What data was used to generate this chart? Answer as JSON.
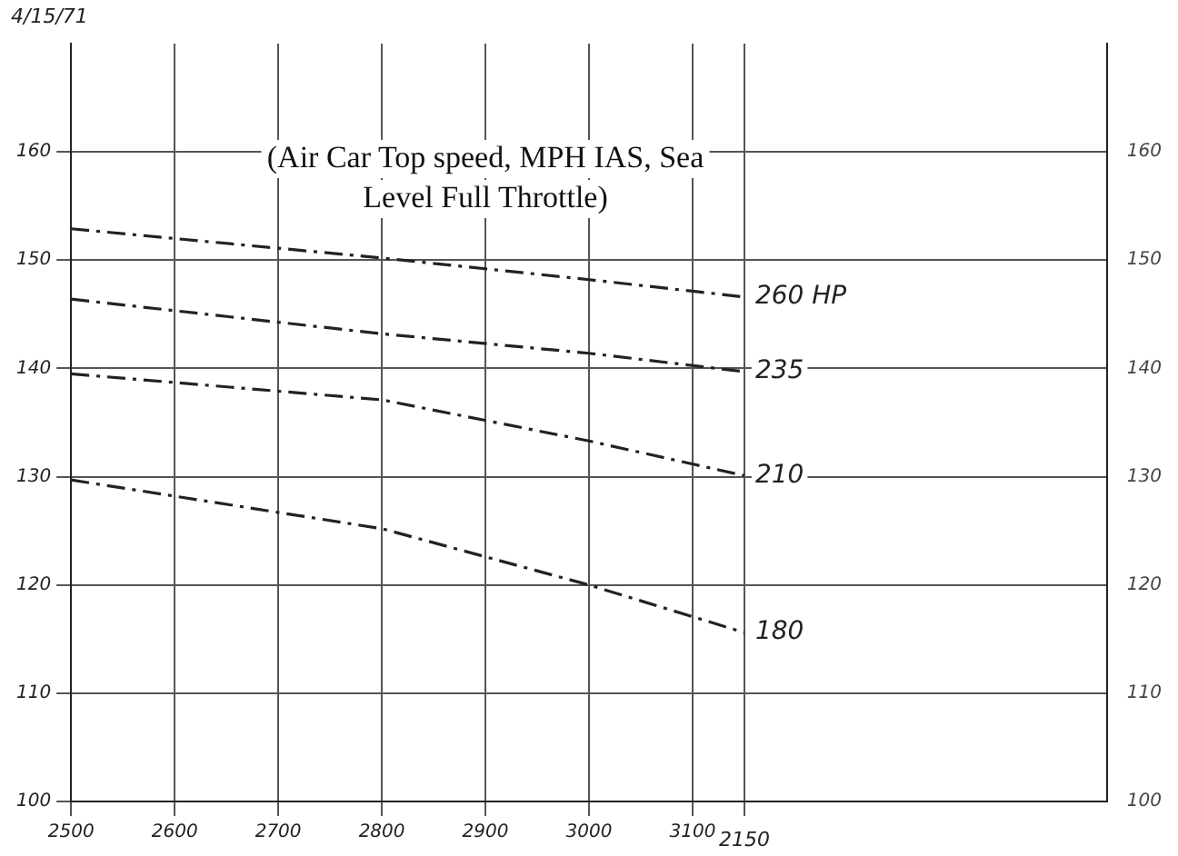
{
  "chart_data": {
    "type": "line",
    "title": "(Air Car Top speed, MPH IAS, Sea Level Full Throttle)",
    "annotations": [
      "4/15/71",
      "2150"
    ],
    "x": [
      2500,
      2800,
      3000,
      3150
    ],
    "series": [
      {
        "name": "260 HP",
        "color": "#222222",
        "values": [
          152.9,
          150.2,
          148.2,
          146.6
        ]
      },
      {
        "name": "235",
        "color": "#222222",
        "values": [
          146.4,
          143.2,
          141.4,
          139.7
        ]
      },
      {
        "name": "210",
        "color": "#222222",
        "values": [
          139.5,
          137.1,
          133.3,
          130.1
        ]
      },
      {
        "name": "180",
        "color": "#222222",
        "values": [
          129.7,
          125.2,
          120.0,
          115.6
        ]
      }
    ],
    "xlim": [
      2500,
      3500
    ],
    "xticks": [
      2500,
      2600,
      2700,
      2800,
      2900,
      3000,
      3100,
      {
        "value": 3150,
        "label": null
      }
    ],
    "ylim": [
      100,
      170
    ],
    "yticks": [
      100,
      110,
      120,
      130,
      140,
      150,
      160
    ],
    "y2lim": [
      100,
      170
    ],
    "y2ticks": [
      100,
      110,
      120,
      130,
      140,
      150,
      160
    ],
    "grid": true,
    "legend": false,
    "marker": "none",
    "line_style": "dashed"
  }
}
